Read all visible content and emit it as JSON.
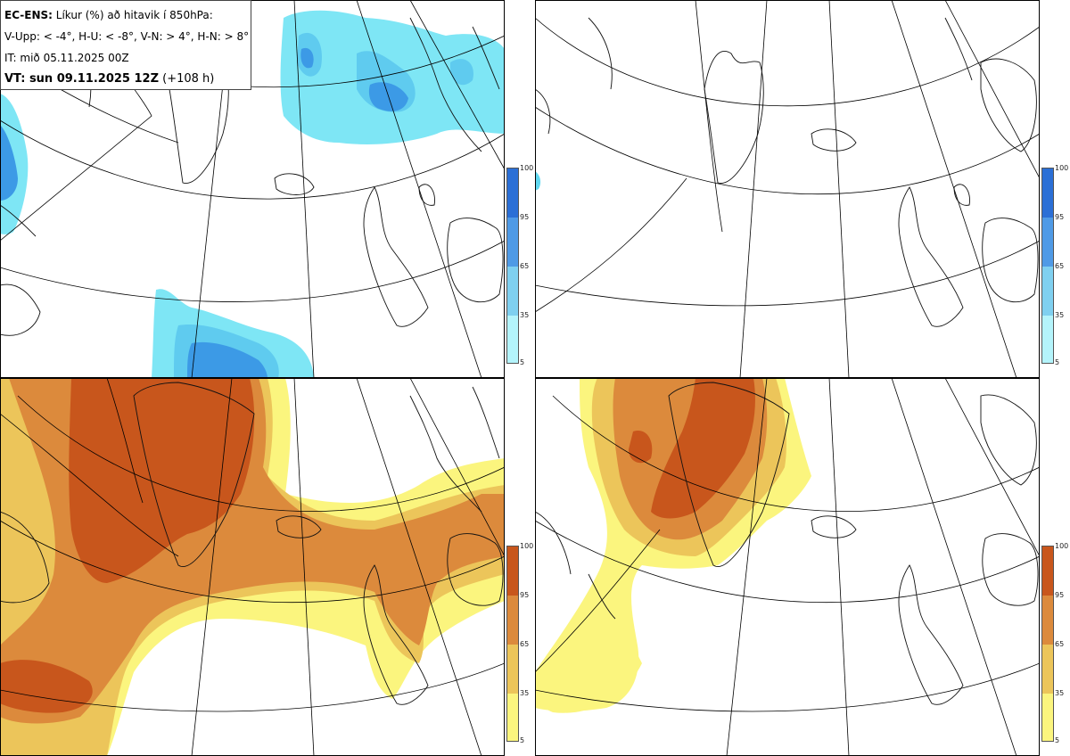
{
  "header": {
    "model_label": "EC-ENS:",
    "title_text": "Líkur (%) að hitavik í 850hPa:",
    "thresholds": "V-Upp: < -4°, H-U: < -8°, V-N: > 4°, H-N: > 8°",
    "initial_time": "IT: mið 05.11.2025 00Z",
    "valid_label": "VT: sun 09.11.2025 12Z",
    "lead_time": "(+108 h)"
  },
  "panels": [
    {
      "id": "top-left",
      "variable": "cold anomaly < -4°",
      "palette": "blue"
    },
    {
      "id": "top-right",
      "variable": "cold anomaly < -8°",
      "palette": "blue"
    },
    {
      "id": "bottom-left",
      "variable": "warm anomaly > 4°",
      "palette": "orange"
    },
    {
      "id": "bottom-right",
      "variable": "warm anomaly > 8°",
      "palette": "orange"
    }
  ],
  "colorbars": {
    "levels": [
      "100",
      "95",
      "65",
      "35",
      "5"
    ],
    "blue_colors": [
      "#2b6fd6",
      "#4f9ae6",
      "#7fd0f0",
      "#b4f4fb"
    ],
    "orange_colors": [
      "#c8561c",
      "#dc8a3c",
      "#ecc55a",
      "#fbf57e"
    ]
  },
  "colors": {
    "blue_light": "#a8f3fb",
    "blue_mid": "#60d8f0",
    "blue_dark": "#3c9ae6",
    "orange_light": "#fbf57e",
    "orange_mid": "#ecc55a",
    "orange_dark": "#dc8a3c",
    "orange_deep": "#c8561c"
  }
}
